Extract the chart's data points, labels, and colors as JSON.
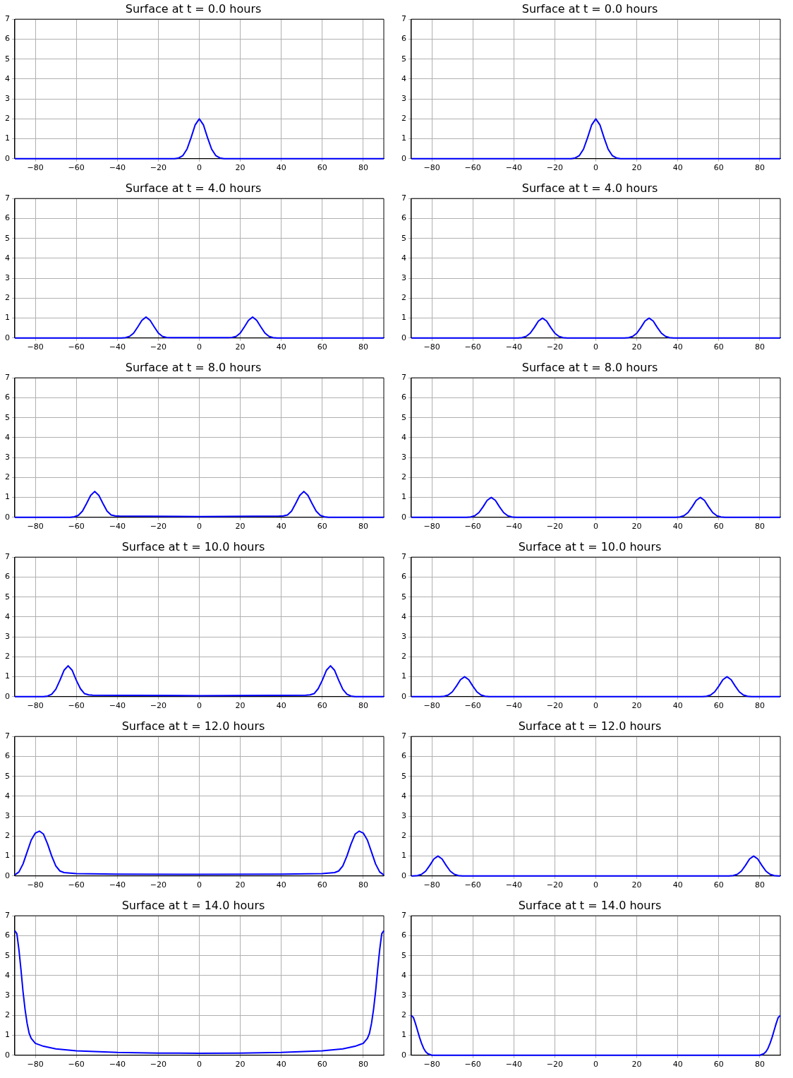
{
  "chart_data": [
    {
      "type": "line",
      "title": "Surface at t = 0.0 hours",
      "xlim": [
        -90,
        90
      ],
      "xticks": [
        {
          "value": -80,
          "label": "−80"
        },
        {
          "value": -60,
          "label": "−60"
        },
        {
          "value": -40,
          "label": "−40"
        },
        {
          "value": -20,
          "label": "−20"
        },
        0,
        20,
        40,
        60,
        80
      ],
      "ylim": [
        0,
        7
      ],
      "yticks": [
        0,
        1,
        2,
        3,
        4,
        5,
        6,
        7
      ],
      "grid": true,
      "line_style": "solid",
      "series": [
        {
          "color": "#0000ff",
          "x": [
            -90,
            -12,
            -10,
            -8,
            -6,
            -4,
            -2,
            0,
            2,
            4,
            6,
            8,
            10,
            12,
            90
          ],
          "values": [
            0,
            0,
            0.04,
            0.16,
            0.48,
            1.06,
            1.7,
            2,
            1.7,
            1.06,
            0.48,
            0.16,
            0.04,
            0,
            0
          ]
        }
      ]
    },
    {
      "type": "line",
      "title": "Surface at t = 0.0 hours",
      "xlim": [
        -90,
        90
      ],
      "xticks": [
        {
          "value": -80,
          "label": "−80"
        },
        {
          "value": -60,
          "label": "−60"
        },
        {
          "value": -40,
          "label": "−40"
        },
        {
          "value": -20,
          "label": "−20"
        },
        0,
        20,
        40,
        60,
        80
      ],
      "ylim": [
        0,
        7
      ],
      "yticks": [
        0,
        1,
        2,
        3,
        4,
        5,
        6,
        7
      ],
      "grid": true,
      "line_style": "solid",
      "series": [
        {
          "color": "#0000ff",
          "x": [
            -90,
            -12,
            -10,
            -8,
            -6,
            -4,
            -2,
            0,
            2,
            4,
            6,
            8,
            10,
            12,
            90
          ],
          "values": [
            0,
            0,
            0.04,
            0.16,
            0.48,
            1.06,
            1.7,
            2,
            1.7,
            1.06,
            0.48,
            0.16,
            0.04,
            0,
            0
          ]
        }
      ]
    },
    {
      "type": "line",
      "title": "Surface at t = 4.0 hours",
      "xlim": [
        -90,
        90
      ],
      "xticks": [
        {
          "value": -80,
          "label": "−80"
        },
        {
          "value": -60,
          "label": "−60"
        },
        {
          "value": -40,
          "label": "−40"
        },
        {
          "value": -20,
          "label": "−20"
        },
        0,
        20,
        40,
        60,
        80
      ],
      "ylim": [
        0,
        7
      ],
      "yticks": [
        0,
        1,
        2,
        3,
        4,
        5,
        6,
        7
      ],
      "grid": true,
      "line_style": "solid",
      "series": [
        {
          "color": "#0000ff",
          "x": [
            -90,
            -38,
            -36,
            -34,
            -32,
            -30,
            -28,
            -26,
            -24,
            -22,
            -20,
            -18,
            -16,
            -14,
            0,
            14,
            16,
            18,
            20,
            22,
            24,
            26,
            28,
            30,
            32,
            34,
            36,
            38,
            90
          ],
          "values": [
            0,
            0,
            0.02,
            0.08,
            0.25,
            0.56,
            0.89,
            1.05,
            0.89,
            0.56,
            0.25,
            0.08,
            0.03,
            0.02,
            0.02,
            0.02,
            0.03,
            0.08,
            0.25,
            0.56,
            0.89,
            1.05,
            0.89,
            0.56,
            0.25,
            0.08,
            0.02,
            0,
            0
          ]
        }
      ]
    },
    {
      "type": "line",
      "title": "Surface at t = 4.0 hours",
      "xlim": [
        -90,
        90
      ],
      "xticks": [
        {
          "value": -80,
          "label": "−80"
        },
        {
          "value": -60,
          "label": "−60"
        },
        {
          "value": -40,
          "label": "−40"
        },
        {
          "value": -20,
          "label": "−20"
        },
        0,
        20,
        40,
        60,
        80
      ],
      "ylim": [
        0,
        7
      ],
      "yticks": [
        0,
        1,
        2,
        3,
        4,
        5,
        6,
        7
      ],
      "grid": true,
      "line_style": "solid",
      "series": [
        {
          "color": "#0000ff",
          "x": [
            -90,
            -38,
            -36,
            -34,
            -32,
            -30,
            -28,
            -26,
            -24,
            -22,
            -20,
            -18,
            -16,
            -14,
            14,
            16,
            18,
            20,
            22,
            24,
            26,
            28,
            30,
            32,
            34,
            36,
            38,
            90
          ],
          "values": [
            0,
            0,
            0.02,
            0.08,
            0.24,
            0.53,
            0.85,
            1,
            0.85,
            0.53,
            0.24,
            0.08,
            0.02,
            0,
            0,
            0.02,
            0.08,
            0.24,
            0.53,
            0.85,
            1,
            0.85,
            0.53,
            0.24,
            0.08,
            0.02,
            0,
            0
          ]
        }
      ]
    },
    {
      "type": "line",
      "title": "Surface at t = 8.0 hours",
      "xlim": [
        -90,
        90
      ],
      "xticks": [
        {
          "value": -80,
          "label": "−80"
        },
        {
          "value": -60,
          "label": "−60"
        },
        {
          "value": -40,
          "label": "−40"
        },
        {
          "value": -20,
          "label": "−20"
        },
        0,
        20,
        40,
        60,
        80
      ],
      "ylim": [
        0,
        7
      ],
      "yticks": [
        0,
        1,
        2,
        3,
        4,
        5,
        6,
        7
      ],
      "grid": true,
      "line_style": "solid",
      "series": [
        {
          "color": "#0000ff",
          "x": [
            -90,
            -63,
            -61,
            -59,
            -57,
            -55,
            -53,
            -51,
            -49,
            -47,
            -45,
            -43,
            -41,
            -39,
            0,
            39,
            41,
            43,
            45,
            47,
            49,
            51,
            53,
            55,
            57,
            59,
            61,
            63,
            90
          ],
          "values": [
            0,
            0,
            0.03,
            0.1,
            0.31,
            0.69,
            1.1,
            1.3,
            1.1,
            0.69,
            0.31,
            0.12,
            0.07,
            0.06,
            0.04,
            0.06,
            0.07,
            0.12,
            0.31,
            0.69,
            1.1,
            1.3,
            1.1,
            0.69,
            0.31,
            0.1,
            0.03,
            0,
            0
          ]
        }
      ]
    },
    {
      "type": "line",
      "title": "Surface at t = 8.0 hours",
      "xlim": [
        -90,
        90
      ],
      "xticks": [
        {
          "value": -80,
          "label": "−80"
        },
        {
          "value": -60,
          "label": "−60"
        },
        {
          "value": -40,
          "label": "−40"
        },
        {
          "value": -20,
          "label": "−20"
        },
        0,
        20,
        40,
        60,
        80
      ],
      "ylim": [
        0,
        7
      ],
      "yticks": [
        0,
        1,
        2,
        3,
        4,
        5,
        6,
        7
      ],
      "grid": true,
      "line_style": "solid",
      "series": [
        {
          "color": "#0000ff",
          "x": [
            -90,
            -63,
            -61,
            -59,
            -57,
            -55,
            -53,
            -51,
            -49,
            -47,
            -45,
            -43,
            -41,
            -39,
            39,
            41,
            43,
            45,
            47,
            49,
            51,
            53,
            55,
            57,
            59,
            61,
            63,
            90
          ],
          "values": [
            0,
            0,
            0.02,
            0.08,
            0.24,
            0.53,
            0.85,
            1,
            0.85,
            0.53,
            0.24,
            0.08,
            0.02,
            0,
            0,
            0.02,
            0.08,
            0.24,
            0.53,
            0.85,
            1,
            0.85,
            0.53,
            0.24,
            0.08,
            0.02,
            0,
            0
          ]
        }
      ]
    },
    {
      "type": "line",
      "title": "Surface at t = 10.0 hours",
      "xlim": [
        -90,
        90
      ],
      "xticks": [
        {
          "value": -80,
          "label": "−80"
        },
        {
          "value": -60,
          "label": "−60"
        },
        {
          "value": -40,
          "label": "−40"
        },
        {
          "value": -20,
          "label": "−20"
        },
        0,
        20,
        40,
        60,
        80
      ],
      "ylim": [
        0,
        7
      ],
      "yticks": [
        0,
        1,
        2,
        3,
        4,
        5,
        6,
        7
      ],
      "grid": true,
      "line_style": "solid",
      "series": [
        {
          "color": "#0000ff",
          "x": [
            -90,
            -76,
            -74,
            -72,
            -70,
            -68,
            -66,
            -64,
            -62,
            -60,
            -58,
            -56,
            -54,
            -52,
            0,
            52,
            54,
            56,
            58,
            60,
            62,
            64,
            66,
            68,
            70,
            72,
            74,
            76,
            90
          ],
          "values": [
            0,
            0,
            0.03,
            0.12,
            0.37,
            0.82,
            1.32,
            1.55,
            1.32,
            0.82,
            0.4,
            0.15,
            0.09,
            0.07,
            0.05,
            0.07,
            0.09,
            0.15,
            0.4,
            0.82,
            1.32,
            1.55,
            1.32,
            0.82,
            0.37,
            0.12,
            0.03,
            0,
            0
          ]
        }
      ]
    },
    {
      "type": "line",
      "title": "Surface at t = 10.0 hours",
      "xlim": [
        -90,
        90
      ],
      "xticks": [
        {
          "value": -80,
          "label": "−80"
        },
        {
          "value": -60,
          "label": "−60"
        },
        {
          "value": -40,
          "label": "−40"
        },
        {
          "value": -20,
          "label": "−20"
        },
        0,
        20,
        40,
        60,
        80
      ],
      "ylim": [
        0,
        7
      ],
      "yticks": [
        0,
        1,
        2,
        3,
        4,
        5,
        6,
        7
      ],
      "grid": true,
      "line_style": "solid",
      "series": [
        {
          "color": "#0000ff",
          "x": [
            -90,
            -76,
            -74,
            -72,
            -70,
            -68,
            -66,
            -64,
            -62,
            -60,
            -58,
            -56,
            -54,
            -52,
            52,
            54,
            56,
            58,
            60,
            62,
            64,
            66,
            68,
            70,
            72,
            74,
            76,
            90
          ],
          "values": [
            0,
            0,
            0.02,
            0.08,
            0.24,
            0.53,
            0.85,
            1,
            0.85,
            0.53,
            0.24,
            0.08,
            0.02,
            0,
            0,
            0.02,
            0.08,
            0.24,
            0.53,
            0.85,
            1,
            0.85,
            0.53,
            0.24,
            0.08,
            0.02,
            0,
            0
          ]
        }
      ]
    },
    {
      "type": "line",
      "title": "Surface at t = 12.0 hours",
      "xlim": [
        -90,
        90
      ],
      "xticks": [
        {
          "value": -80,
          "label": "−80"
        },
        {
          "value": -60,
          "label": "−60"
        },
        {
          "value": -40,
          "label": "−40"
        },
        {
          "value": -20,
          "label": "−20"
        },
        0,
        20,
        40,
        60,
        80
      ],
      "ylim": [
        0,
        7
      ],
      "yticks": [
        0,
        1,
        2,
        3,
        4,
        5,
        6,
        7
      ],
      "grid": true,
      "line_style": "solid",
      "series": [
        {
          "color": "#0000ff",
          "x": [
            -90,
            -88,
            -86,
            -84,
            -82,
            -80,
            -78,
            -76,
            -74,
            -72,
            -70,
            -68,
            -66,
            -60,
            -40,
            0,
            40,
            60,
            66,
            68,
            70,
            72,
            74,
            76,
            78,
            80,
            82,
            84,
            86,
            88,
            90
          ],
          "values": [
            0.05,
            0.2,
            0.6,
            1.2,
            1.8,
            2.15,
            2.25,
            2.1,
            1.6,
            1,
            0.5,
            0.25,
            0.17,
            0.12,
            0.09,
            0.08,
            0.09,
            0.12,
            0.17,
            0.25,
            0.5,
            1,
            1.6,
            2.1,
            2.25,
            2.15,
            1.8,
            1.2,
            0.6,
            0.2,
            0.05
          ]
        }
      ]
    },
    {
      "type": "line",
      "title": "Surface at t = 12.0 hours",
      "xlim": [
        -90,
        90
      ],
      "xticks": [
        {
          "value": -80,
          "label": "−80"
        },
        {
          "value": -60,
          "label": "−60"
        },
        {
          "value": -40,
          "label": "−40"
        },
        {
          "value": -20,
          "label": "−20"
        },
        0,
        20,
        40,
        60,
        80
      ],
      "ylim": [
        0,
        7
      ],
      "yticks": [
        0,
        1,
        2,
        3,
        4,
        5,
        6,
        7
      ],
      "grid": true,
      "line_style": "solid",
      "series": [
        {
          "color": "#0000ff",
          "x": [
            -90,
            -89,
            -87,
            -85,
            -83,
            -81,
            -79,
            -77,
            -75,
            -73,
            -71,
            -69,
            -67,
            -65,
            65,
            67,
            69,
            71,
            73,
            75,
            77,
            79,
            81,
            83,
            85,
            87,
            89,
            90
          ],
          "values": [
            0,
            0,
            0.02,
            0.08,
            0.24,
            0.53,
            0.85,
            1,
            0.85,
            0.53,
            0.24,
            0.08,
            0.02,
            0,
            0,
            0.02,
            0.08,
            0.24,
            0.53,
            0.85,
            1,
            0.85,
            0.53,
            0.24,
            0.08,
            0.02,
            0,
            0
          ]
        }
      ]
    },
    {
      "type": "line",
      "title": "Surface at t = 14.0 hours",
      "xlim": [
        -90,
        90
      ],
      "xticks": [
        {
          "value": -80,
          "label": "−80"
        },
        {
          "value": -60,
          "label": "−60"
        },
        {
          "value": -40,
          "label": "−40"
        },
        {
          "value": -20,
          "label": "−20"
        },
        0,
        20,
        40,
        60,
        80
      ],
      "ylim": [
        0,
        7
      ],
      "yticks": [
        0,
        1,
        2,
        3,
        4,
        5,
        6,
        7
      ],
      "grid": true,
      "line_style": "solid",
      "series": [
        {
          "color": "#0000ff",
          "x": [
            -90,
            -89,
            -88,
            -87,
            -86,
            -85,
            -84,
            -83,
            -82,
            -80,
            -76,
            -70,
            -60,
            -40,
            -20,
            0,
            20,
            40,
            60,
            70,
            76,
            80,
            82,
            83,
            84,
            85,
            86,
            87,
            88,
            89,
            90
          ],
          "values": [
            6.25,
            6.1,
            5.3,
            4.3,
            3.2,
            2.3,
            1.6,
            1.1,
            0.85,
            0.6,
            0.45,
            0.32,
            0.22,
            0.14,
            0.11,
            0.1,
            0.11,
            0.14,
            0.22,
            0.32,
            0.45,
            0.6,
            0.85,
            1.1,
            1.6,
            2.3,
            3.2,
            4.3,
            5.3,
            6.1,
            6.25
          ]
        }
      ]
    },
    {
      "type": "line",
      "title": "Surface at t = 14.0 hours",
      "xlim": [
        -90,
        90
      ],
      "xticks": [
        {
          "value": -80,
          "label": "−80"
        },
        {
          "value": -60,
          "label": "−60"
        },
        {
          "value": -40,
          "label": "−40"
        },
        {
          "value": -20,
          "label": "−20"
        },
        0,
        20,
        40,
        60,
        80
      ],
      "ylim": [
        0,
        7
      ],
      "yticks": [
        0,
        1,
        2,
        3,
        4,
        5,
        6,
        7
      ],
      "grid": true,
      "line_style": "solid",
      "series": [
        {
          "color": "#0000ff",
          "x": [
            -90,
            -89,
            -88,
            -87,
            -86,
            -85,
            -84,
            -83,
            -82,
            -80,
            80,
            82,
            83,
            84,
            85,
            86,
            87,
            88,
            89,
            90
          ],
          "values": [
            2,
            1.9,
            1.6,
            1.25,
            0.9,
            0.6,
            0.35,
            0.18,
            0.08,
            0,
            0,
            0.08,
            0.18,
            0.35,
            0.6,
            0.9,
            1.25,
            1.6,
            1.9,
            2
          ]
        }
      ]
    }
  ]
}
